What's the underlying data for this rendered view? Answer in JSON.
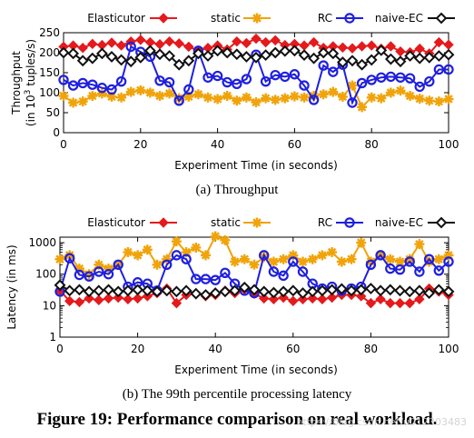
{
  "figure": {
    "caption": "Figure 19: Performance comparison on real workload.",
    "watermark": "https://blog.csdn.net/u012303483"
  },
  "series_style": {
    "Elasticutor": {
      "color": "#e41a1c",
      "marker": "diamond-filled"
    },
    "static": {
      "color": "#f0a30a",
      "marker": "star"
    },
    "RC": {
      "color": "#1f1fe0",
      "marker": "circle-open"
    },
    "naive-EC": {
      "color": "#111111",
      "marker": "diamond-open"
    }
  },
  "chart_data": [
    {
      "type": "line",
      "subcaption": "(a)  Throughput",
      "xlabel": "Experiment Time (in seconds)",
      "ylabel_line1": "Throughput",
      "ylabel_line2_pre": "(in 10",
      "ylabel_line2_sup": "3",
      "ylabel_line2_post": " tuples/s)",
      "xlim": [
        0,
        100
      ],
      "ylim": [
        0,
        250
      ],
      "xticks": [
        0,
        20,
        40,
        60,
        80,
        100
      ],
      "yticks": [
        0,
        50,
        100,
        150,
        200,
        250
      ],
      "grid": false,
      "legend": "top",
      "x": [
        0,
        2.5,
        5,
        7.5,
        10,
        12.5,
        15,
        17.5,
        20,
        22.5,
        25,
        27.5,
        30,
        32.5,
        35,
        37.5,
        40,
        42.5,
        45,
        47.5,
        50,
        52.5,
        55,
        57.5,
        60,
        62.5,
        65,
        67.5,
        70,
        72.5,
        75,
        77.5,
        80,
        82.5,
        85,
        87.5,
        90,
        92.5,
        95,
        97.5,
        100
      ],
      "series": [
        {
          "name": "Elasticutor",
          "values": [
            215,
            218,
            212,
            222,
            219,
            225,
            218,
            228,
            232,
            226,
            221,
            228,
            223,
            215,
            205,
            212,
            218,
            208,
            228,
            224,
            235,
            226,
            231,
            219,
            222,
            218,
            226,
            212,
            216,
            213,
            211,
            216,
            218,
            210,
            216,
            203,
            201,
            210,
            198,
            226,
            220
          ]
        },
        {
          "name": "static",
          "values": [
            92,
            75,
            78,
            92,
            98,
            90,
            88,
            102,
            106,
            100,
            92,
            98,
            86,
            90,
            96,
            88,
            84,
            92,
            80,
            88,
            76,
            86,
            82,
            86,
            91,
            88,
            92,
            96,
            102,
            90,
            118,
            64,
            88,
            86,
            100,
            105,
            92,
            85,
            80,
            78,
            84
          ]
        },
        {
          "name": "RC",
          "values": [
            132,
            118,
            124,
            120,
            112,
            108,
            128,
            215,
            202,
            190,
            130,
            126,
            80,
            108,
            205,
            138,
            142,
            126,
            122,
            134,
            195,
            128,
            144,
            140,
            146,
            118,
            82,
            168,
            152,
            170,
            75,
            124,
            132,
            138,
            140,
            138,
            136,
            115,
            128,
            158,
            158
          ]
        },
        {
          "name": "naive-EC",
          "values": [
            200,
            198,
            180,
            186,
            198,
            190,
            182,
            178,
            188,
            205,
            196,
            192,
            170,
            180,
            198,
            192,
            205,
            200,
            196,
            190,
            188,
            194,
            200,
            204,
            205,
            194,
            186,
            200,
            198,
            176,
            180,
            170,
            182,
            206,
            184,
            178,
            192,
            186,
            188,
            192,
            195
          ]
        }
      ]
    },
    {
      "type": "line",
      "subcaption": "(b)  The 99th percentile processing latency",
      "xlabel": "Experiment Time (in seconds)",
      "ylabel": "Latency (in ms)",
      "xlim": [
        0,
        100
      ],
      "ylim": [
        1,
        1500
      ],
      "yscale": "log",
      "xticks": [
        0,
        20,
        40,
        60,
        80,
        100
      ],
      "yticks": [
        1,
        10,
        100,
        1000
      ],
      "grid": false,
      "legend": "top",
      "x": [
        0,
        2.5,
        5,
        7.5,
        10,
        12.5,
        15,
        17.5,
        20,
        22.5,
        25,
        27.5,
        30,
        32.5,
        35,
        37.5,
        40,
        42.5,
        45,
        47.5,
        50,
        52.5,
        55,
        57.5,
        60,
        62.5,
        65,
        67.5,
        70,
        72.5,
        75,
        77.5,
        80,
        82.5,
        85,
        87.5,
        90,
        92.5,
        95,
        97.5,
        100
      ],
      "series": [
        {
          "name": "Elasticutor",
          "values": [
            30,
            14,
            13,
            17,
            15,
            17,
            18,
            16,
            17,
            20,
            25,
            35,
            12,
            22,
            25,
            20,
            22,
            30,
            25,
            33,
            24,
            17,
            16,
            18,
            14,
            16,
            17,
            16,
            18,
            22,
            22,
            20,
            12,
            16,
            12,
            12,
            12,
            16,
            35,
            28,
            22
          ]
        },
        {
          "name": "static",
          "values": [
            300,
            400,
            150,
            100,
            200,
            150,
            200,
            500,
            400,
            600,
            200,
            300,
            1100,
            500,
            700,
            400,
            1600,
            1200,
            250,
            300,
            200,
            350,
            250,
            300,
            400,
            250,
            300,
            400,
            500,
            250,
            300,
            1000,
            250,
            400,
            300,
            250,
            300,
            900,
            250,
            300,
            400
          ]
        },
        {
          "name": "RC",
          "values": [
            28,
            320,
            95,
            85,
            120,
            100,
            200,
            40,
            55,
            50,
            30,
            200,
            400,
            300,
            70,
            70,
            65,
            110,
            50,
            30,
            25,
            400,
            120,
            90,
            250,
            120,
            50,
            35,
            40,
            30,
            35,
            40,
            200,
            400,
            150,
            140,
            250,
            120,
            300,
            130,
            250
          ]
        },
        {
          "name": "naive-EC",
          "values": [
            45,
            30,
            32,
            28,
            30,
            32,
            28,
            30,
            32,
            30,
            28,
            30,
            28,
            30,
            24,
            22,
            25,
            28,
            30,
            38,
            32,
            28,
            26,
            28,
            30,
            25,
            28,
            30,
            32,
            34,
            30,
            32,
            35,
            30,
            32,
            30,
            28,
            30,
            25,
            32,
            28
          ]
        }
      ]
    }
  ]
}
